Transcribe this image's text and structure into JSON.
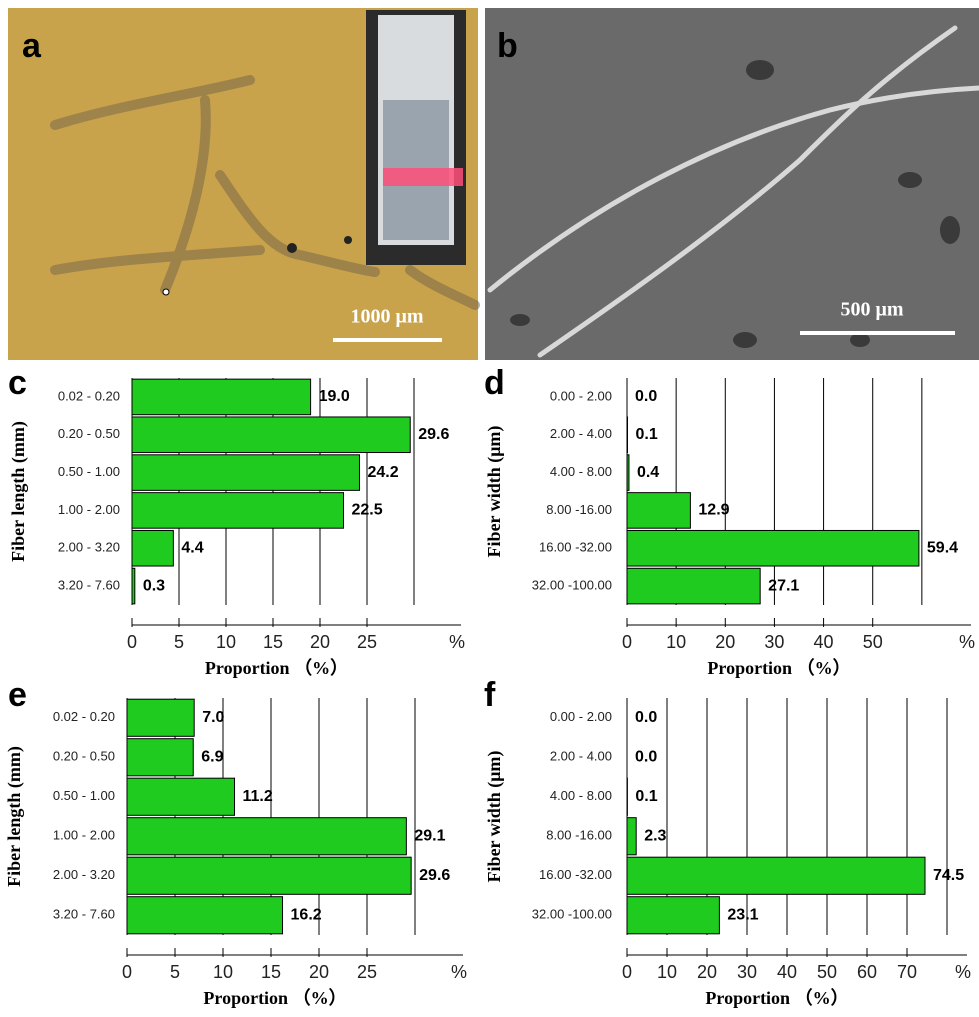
{
  "panels": [
    {
      "label": "a",
      "scale_bar": "1000 μm"
    },
    {
      "label": "b",
      "scale_bar": "500 μm"
    }
  ],
  "chart_data": [
    {
      "type": "bar",
      "panel_label": "c",
      "ylabel": "Fiber length (mm)",
      "xlabel": "Proportion （%）",
      "x_unit": "%",
      "categories": [
        "0.02 - 0.20",
        "0.20 - 0.50",
        "0.50 - 1.00",
        "1.00 - 2.00",
        "2.00 - 3.20",
        "3.20 - 7.60"
      ],
      "values": [
        19.0,
        29.6,
        24.2,
        22.5,
        4.4,
        0.3
      ],
      "value_labels": [
        "19.0",
        "29.6",
        "24.2",
        "22.5",
        "4.4",
        "0.3"
      ],
      "color": "#1ecb1e",
      "xlim": [
        0,
        35
      ],
      "xticks": [
        0,
        5,
        10,
        15,
        20,
        25
      ],
      "gridlines": [
        0,
        5,
        10,
        15,
        20,
        25,
        30
      ]
    },
    {
      "type": "bar",
      "panel_label": "d",
      "ylabel": "Fiber width (μm)",
      "xlabel": "Proportion （%）",
      "x_unit": "%",
      "categories": [
        "0.00 - 2.00",
        "2.00 - 4.00",
        "4.00 - 8.00",
        "8.00 -16.00",
        "16.00 -32.00",
        "32.00 -100.00"
      ],
      "values": [
        0.0,
        0.1,
        0.4,
        12.9,
        59.4,
        27.1
      ],
      "value_labels": [
        "0.0",
        "0.1",
        "0.4",
        "12.9",
        "59.4",
        "27.1"
      ],
      "color": "#1ecb1e",
      "xlim": [
        0,
        70
      ],
      "xticks": [
        0,
        10,
        20,
        30,
        40,
        50
      ],
      "gridlines": [
        0,
        10,
        20,
        30,
        40,
        50,
        60
      ]
    },
    {
      "type": "bar",
      "panel_label": "e",
      "ylabel": "Fiber length (mm)",
      "xlabel": "Proportion （%）",
      "x_unit": "%",
      "categories": [
        "0.02 - 0.20",
        "0.20 - 0.50",
        "0.50 - 1.00",
        "1.00 - 2.00",
        "2.00 - 3.20",
        "3.20 - 7.60"
      ],
      "values": [
        7.0,
        6.9,
        11.2,
        29.1,
        29.6,
        16.2
      ],
      "value_labels": [
        "7.0",
        "6.9",
        "11.2",
        "29.1",
        "29.6",
        "16.2"
      ],
      "color": "#1ecb1e",
      "xlim": [
        0,
        35
      ],
      "xticks": [
        0,
        5,
        10,
        15,
        20,
        25
      ],
      "gridlines": [
        0,
        5,
        10,
        15,
        20,
        25,
        30
      ]
    },
    {
      "type": "bar",
      "panel_label": "f",
      "ylabel": "Fiber width (μm)",
      "xlabel": "Proportion （%）",
      "x_unit": "%",
      "categories": [
        "0.00 - 2.00",
        "2.00 - 4.00",
        "4.00 - 8.00",
        "8.00 -16.00",
        "16.00 -32.00",
        "32.00 -100.00"
      ],
      "values": [
        0.0,
        0.0,
        0.1,
        2.3,
        74.5,
        23.1
      ],
      "value_labels": [
        "0.0",
        "0.0",
        "0.1",
        "2.3",
        "74.5",
        "23.1"
      ],
      "color": "#1ecb1e",
      "xlim": [
        0,
        85
      ],
      "xticks": [
        0,
        10,
        20,
        30,
        40,
        50,
        60,
        70
      ],
      "gridlines": [
        0,
        10,
        20,
        30,
        40,
        50,
        60,
        70,
        80
      ]
    }
  ]
}
